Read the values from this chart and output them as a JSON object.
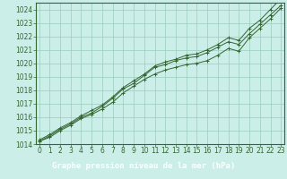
{
  "bg_plot": "#cceee8",
  "bg_label": "#336633",
  "grid_color": "#99ccbb",
  "line_color": "#336633",
  "border_color": "#336633",
  "xlabel": "Graphe pression niveau de la mer (hPa)",
  "xlabel_fontsize": 6.5,
  "tick_fontsize": 5.5,
  "xlim": [
    -0.3,
    23.3
  ],
  "ylim": [
    1014,
    1024.5
  ],
  "yticks": [
    1014,
    1015,
    1016,
    1017,
    1018,
    1019,
    1020,
    1021,
    1022,
    1023,
    1024
  ],
  "xticks": [
    0,
    1,
    2,
    3,
    4,
    5,
    6,
    7,
    8,
    9,
    10,
    11,
    12,
    13,
    14,
    15,
    16,
    17,
    18,
    19,
    20,
    21,
    22,
    23
  ],
  "series1": [
    1014.2,
    1014.5,
    1015.0,
    1015.4,
    1015.9,
    1016.2,
    1016.6,
    1017.1,
    1017.8,
    1018.3,
    1018.8,
    1019.2,
    1019.5,
    1019.7,
    1019.9,
    1020.0,
    1020.2,
    1020.6,
    1021.1,
    1020.9,
    1021.9,
    1022.6,
    1023.3,
    1024.1
  ],
  "series2": [
    1014.2,
    1014.6,
    1015.1,
    1015.5,
    1016.0,
    1016.3,
    1016.8,
    1017.4,
    1018.1,
    1018.5,
    1019.1,
    1019.7,
    1019.9,
    1020.2,
    1020.4,
    1020.5,
    1020.8,
    1021.2,
    1021.6,
    1021.4,
    1022.2,
    1022.9,
    1023.6,
    1024.3
  ],
  "series3": [
    1014.3,
    1014.7,
    1015.2,
    1015.6,
    1016.1,
    1016.5,
    1016.9,
    1017.5,
    1018.2,
    1018.7,
    1019.2,
    1019.8,
    1020.1,
    1020.3,
    1020.6,
    1020.7,
    1021.0,
    1021.4,
    1021.9,
    1021.7,
    1022.6,
    1023.2,
    1024.0,
    1024.8
  ]
}
